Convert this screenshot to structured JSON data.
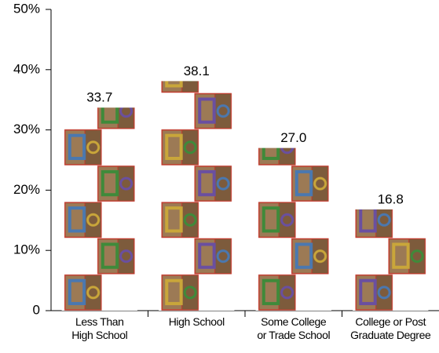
{
  "chart_data": {
    "type": "bar",
    "categories": [
      "Less Than\nHigh School",
      "High School",
      "Some College\nor Trade School",
      "College or Post\nGraduate Degree"
    ],
    "values": [
      33.7,
      38.1,
      27,
      16.8
    ],
    "value_labels": [
      "33.7",
      "38.1",
      "27.0",
      "16.8"
    ],
    "color": "#9c7a55",
    "ylim": [
      0,
      50
    ],
    "yticks": [
      0,
      {
        "value": 10,
        "label": "10%"
      },
      {
        "value": 20,
        "label": "20%"
      },
      {
        "value": 30,
        "label": "30%"
      },
      {
        "value": 40,
        "label": "40%"
      },
      {
        "value": 50,
        "label": "50%"
      }
    ]
  }
}
